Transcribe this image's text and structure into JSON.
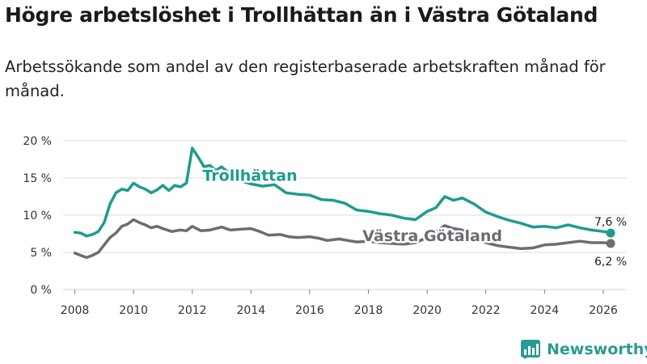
{
  "chart_data": {
    "type": "line",
    "title": "Högre arbetslöshet i Trollhättan än i Västra Götaland",
    "subtitle": "Arbetssökande som andel av den registerbaserade arbetskraften månad för månad.",
    "xlabel": "",
    "ylabel": "",
    "xlim": [
      2007.6,
      2026.8
    ],
    "ylim": [
      0,
      20
    ],
    "x_ticks": [
      2008,
      2010,
      2012,
      2014,
      2016,
      2018,
      2020,
      2022,
      2024,
      2026
    ],
    "x_tick_labels": [
      "2008",
      "2010",
      "2012",
      "2014",
      "2016",
      "2018",
      "2020",
      "2022",
      "2024",
      "2026"
    ],
    "y_ticks": [
      0,
      5,
      10,
      15,
      20
    ],
    "y_tick_labels": [
      "0 %",
      "5 %",
      "10 %",
      "15 %",
      "20 %"
    ],
    "grid": true,
    "series": [
      {
        "name": "Trollhättan",
        "color": "#1e9b91",
        "label_value": "7,6 %",
        "points": [
          [
            2008.0,
            7.7
          ],
          [
            2008.2,
            7.6
          ],
          [
            2008.4,
            7.2
          ],
          [
            2008.6,
            7.4
          ],
          [
            2008.8,
            7.8
          ],
          [
            2009.0,
            9.0
          ],
          [
            2009.2,
            11.5
          ],
          [
            2009.4,
            13.0
          ],
          [
            2009.6,
            13.5
          ],
          [
            2009.8,
            13.3
          ],
          [
            2010.0,
            14.3
          ],
          [
            2010.2,
            13.8
          ],
          [
            2010.4,
            13.5
          ],
          [
            2010.6,
            13.0
          ],
          [
            2010.8,
            13.4
          ],
          [
            2011.0,
            14.0
          ],
          [
            2011.2,
            13.3
          ],
          [
            2011.4,
            14.0
          ],
          [
            2011.6,
            13.8
          ],
          [
            2011.8,
            14.3
          ],
          [
            2012.0,
            19.0
          ],
          [
            2012.2,
            17.8
          ],
          [
            2012.4,
            16.5
          ],
          [
            2012.6,
            16.7
          ],
          [
            2012.8,
            16.0
          ],
          [
            2013.0,
            16.5
          ],
          [
            2013.3,
            15.5
          ],
          [
            2013.6,
            14.7
          ],
          [
            2014.0,
            14.2
          ],
          [
            2014.4,
            13.9
          ],
          [
            2014.8,
            14.1
          ],
          [
            2015.2,
            13.0
          ],
          [
            2015.6,
            12.8
          ],
          [
            2016.0,
            12.7
          ],
          [
            2016.4,
            12.1
          ],
          [
            2016.8,
            12.0
          ],
          [
            2017.2,
            11.6
          ],
          [
            2017.6,
            10.7
          ],
          [
            2018.0,
            10.5
          ],
          [
            2018.4,
            10.2
          ],
          [
            2018.8,
            10.0
          ],
          [
            2019.2,
            9.6
          ],
          [
            2019.6,
            9.4
          ],
          [
            2020.0,
            10.5
          ],
          [
            2020.3,
            11.0
          ],
          [
            2020.6,
            12.5
          ],
          [
            2020.9,
            12.0
          ],
          [
            2021.2,
            12.3
          ],
          [
            2021.6,
            11.5
          ],
          [
            2022.0,
            10.4
          ],
          [
            2022.4,
            9.8
          ],
          [
            2022.8,
            9.3
          ],
          [
            2023.2,
            8.9
          ],
          [
            2023.6,
            8.4
          ],
          [
            2024.0,
            8.5
          ],
          [
            2024.4,
            8.3
          ],
          [
            2024.8,
            8.7
          ],
          [
            2025.2,
            8.3
          ],
          [
            2025.6,
            8.0
          ],
          [
            2026.0,
            7.8
          ],
          [
            2026.25,
            7.6
          ]
        ]
      },
      {
        "name": "Västra Götaland",
        "color": "#6d6b73",
        "label_value": "6,2 %",
        "points": [
          [
            2008.0,
            4.9
          ],
          [
            2008.2,
            4.6
          ],
          [
            2008.4,
            4.3
          ],
          [
            2008.6,
            4.6
          ],
          [
            2008.8,
            5.0
          ],
          [
            2009.0,
            6.0
          ],
          [
            2009.2,
            7.0
          ],
          [
            2009.4,
            7.6
          ],
          [
            2009.6,
            8.5
          ],
          [
            2009.8,
            8.8
          ],
          [
            2010.0,
            9.4
          ],
          [
            2010.2,
            9.0
          ],
          [
            2010.4,
            8.7
          ],
          [
            2010.6,
            8.3
          ],
          [
            2010.8,
            8.5
          ],
          [
            2011.0,
            8.2
          ],
          [
            2011.3,
            7.8
          ],
          [
            2011.6,
            8.0
          ],
          [
            2011.8,
            7.9
          ],
          [
            2012.0,
            8.5
          ],
          [
            2012.3,
            7.9
          ],
          [
            2012.6,
            8.0
          ],
          [
            2013.0,
            8.4
          ],
          [
            2013.3,
            8.0
          ],
          [
            2013.6,
            8.1
          ],
          [
            2014.0,
            8.2
          ],
          [
            2014.3,
            7.8
          ],
          [
            2014.6,
            7.3
          ],
          [
            2015.0,
            7.4
          ],
          [
            2015.3,
            7.1
          ],
          [
            2015.6,
            7.0
          ],
          [
            2016.0,
            7.1
          ],
          [
            2016.3,
            6.9
          ],
          [
            2016.6,
            6.6
          ],
          [
            2017.0,
            6.8
          ],
          [
            2017.3,
            6.6
          ],
          [
            2017.6,
            6.4
          ],
          [
            2018.0,
            6.5
          ],
          [
            2018.4,
            6.3
          ],
          [
            2018.8,
            6.2
          ],
          [
            2019.2,
            6.1
          ],
          [
            2019.6,
            6.3
          ],
          [
            2020.0,
            7.0
          ],
          [
            2020.3,
            7.8
          ],
          [
            2020.6,
            8.6
          ],
          [
            2020.9,
            8.2
          ],
          [
            2021.2,
            8.0
          ],
          [
            2021.6,
            7.0
          ],
          [
            2022.0,
            6.3
          ],
          [
            2022.4,
            5.9
          ],
          [
            2022.8,
            5.7
          ],
          [
            2023.2,
            5.5
          ],
          [
            2023.6,
            5.6
          ],
          [
            2024.0,
            6.0
          ],
          [
            2024.4,
            6.1
          ],
          [
            2024.8,
            6.3
          ],
          [
            2025.2,
            6.5
          ],
          [
            2025.6,
            6.3
          ],
          [
            2026.0,
            6.3
          ],
          [
            2026.25,
            6.2
          ]
        ]
      }
    ]
  },
  "logo": {
    "name": "Newsworthy",
    "color": "#2a9b93"
  }
}
